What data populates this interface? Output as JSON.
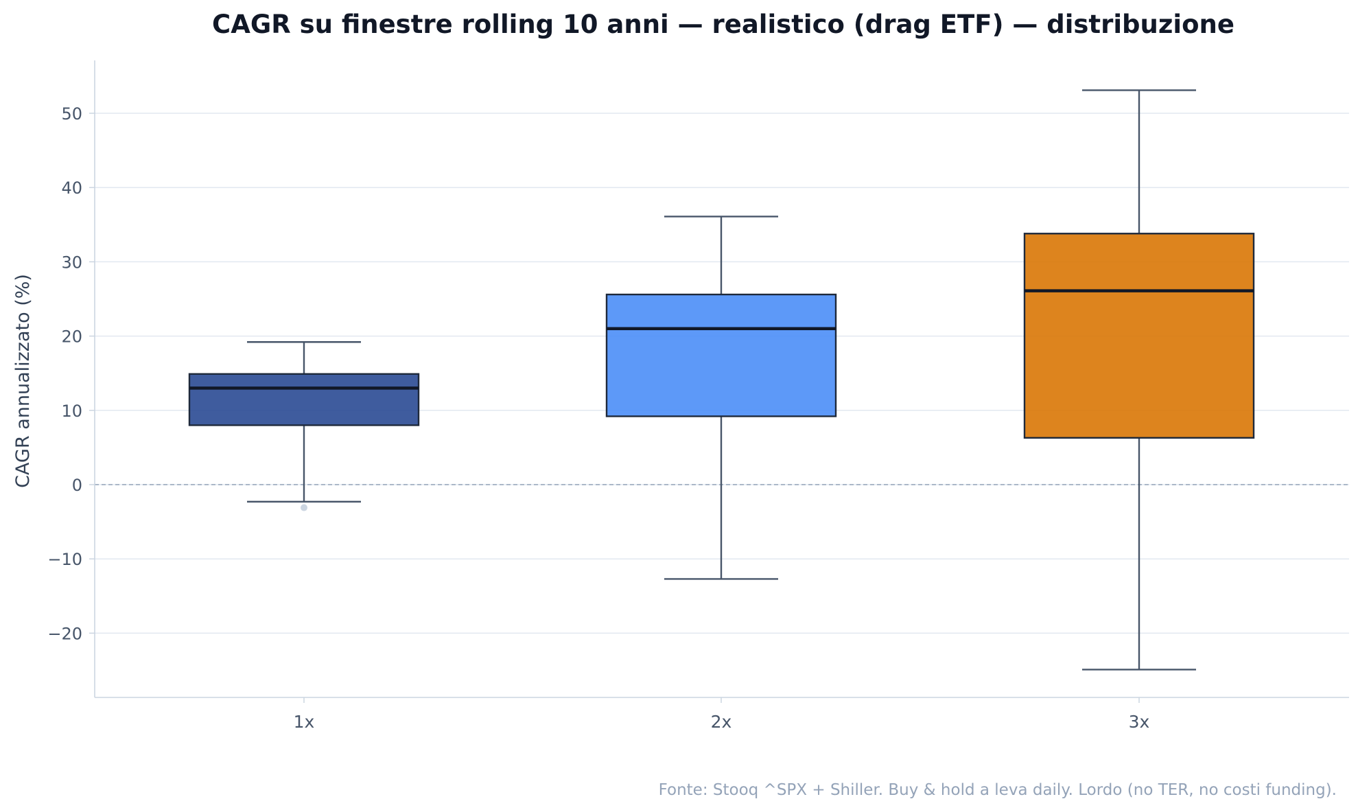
{
  "chart_data": {
    "type": "box",
    "title": "CAGR su finestre rolling 10 anni — realistico (drag ETF) — distribuzione",
    "xlabel": "",
    "ylabel": "CAGR annualizzato (%)",
    "ylim": [
      -29,
      57
    ],
    "yticks": [
      -20,
      -10,
      0,
      10,
      20,
      30,
      40,
      50
    ],
    "ytick_labels": [
      "−20",
      "−10",
      "0",
      "10",
      "20",
      "30",
      "40",
      "50"
    ],
    "grid": true,
    "reference_line": 0,
    "categories": [
      "1x",
      "2x",
      "3x"
    ],
    "series": [
      {
        "category": "1x",
        "whisker_low": -2.3,
        "q1": 8.0,
        "median": 13.0,
        "q3": 14.9,
        "whisker_high": 19.2,
        "outliers": [
          -3.1
        ],
        "color": "#2a4a94"
      },
      {
        "category": "2x",
        "whisker_low": -12.7,
        "q1": 9.2,
        "median": 21.0,
        "q3": 25.6,
        "whisker_high": 36.1,
        "outliers": [],
        "color": "#4b8ef7"
      },
      {
        "category": "3x",
        "whisker_low": -24.9,
        "q1": 6.3,
        "median": 26.1,
        "q3": 33.8,
        "whisker_high": 53.1,
        "outliers": [],
        "color": "#d97706"
      }
    ],
    "source_note": "Fonte: Stooq ^SPX + Shiller. Buy & hold a leva daily. Lordo (no TER, no costi funding)."
  }
}
